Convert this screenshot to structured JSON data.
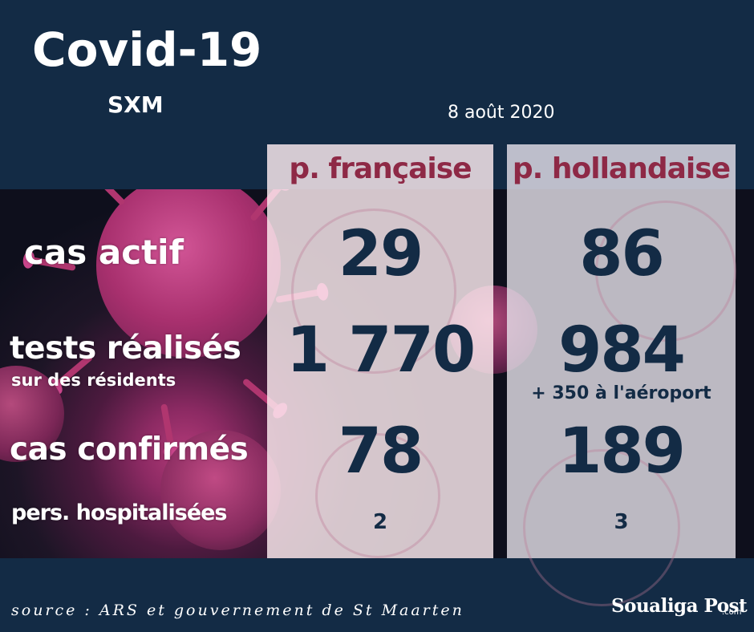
{
  "header": {
    "title": "Covid-19",
    "subtitle": "SXM",
    "date": "8 août 2020"
  },
  "columns": {
    "fr": "p. française",
    "nl": "p. hollandaise"
  },
  "rows": {
    "actif": {
      "label": "cas actif",
      "fr": "29",
      "nl": "86"
    },
    "tests": {
      "label": "tests réalisés",
      "sublabel": "sur des résidents",
      "fr": "1 770",
      "nl": "984",
      "nl_note": "+ 350 à l'aéroport"
    },
    "confirmes": {
      "label": "cas confirmés",
      "fr": "78",
      "nl": "189"
    },
    "hospitalises": {
      "label": "pers. hospitalisées",
      "fr": "2",
      "nl": "3"
    }
  },
  "footer": {
    "source": "source : ARS et gouvernement de St Maarten",
    "logo_text": "Soualiga Post",
    "logo_suffix": ".com"
  },
  "colors": {
    "background": "#132b45",
    "column_header": "#8e2946",
    "values": "#132b45"
  },
  "icons": [
    "coronavirus-image"
  ]
}
